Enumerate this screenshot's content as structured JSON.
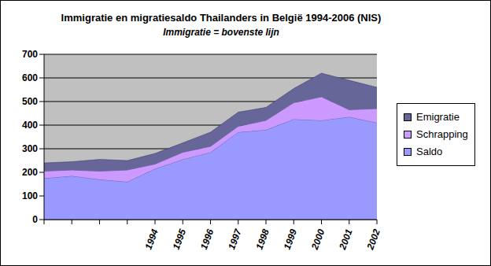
{
  "chart_data": {
    "type": "area",
    "title": "Immigratie en migratiesaldo Thailanders in België 1994-2006 (NIS)",
    "subtitle": "Immigratie = bovenste lijn",
    "categories": [
      null,
      null,
      null,
      null,
      "1994",
      "1995",
      "1996",
      "1997",
      "1998",
      "1999",
      "2000",
      "2001",
      "2002"
    ],
    "series": [
      {
        "name": "Saldo",
        "color": "#9999ff",
        "values": [
          175,
          185,
          170,
          160,
          215,
          255,
          285,
          370,
          380,
          425,
          420,
          435,
          410
        ]
      },
      {
        "name": "Schrapping",
        "color": "#cc99ff",
        "values": [
          30,
          25,
          35,
          50,
          20,
          30,
          25,
          25,
          40,
          70,
          100,
          30,
          60
        ]
      },
      {
        "name": "Emigratie",
        "color": "#666699",
        "values": [
          35,
          35,
          50,
          40,
          45,
          40,
          60,
          60,
          55,
          60,
          100,
          125,
          90
        ]
      }
    ],
    "ylim": [
      0,
      700
    ],
    "yticks": [
      0,
      100,
      200,
      300,
      400,
      500,
      600,
      700
    ],
    "stacked": true,
    "grid": true,
    "legend": "right"
  }
}
